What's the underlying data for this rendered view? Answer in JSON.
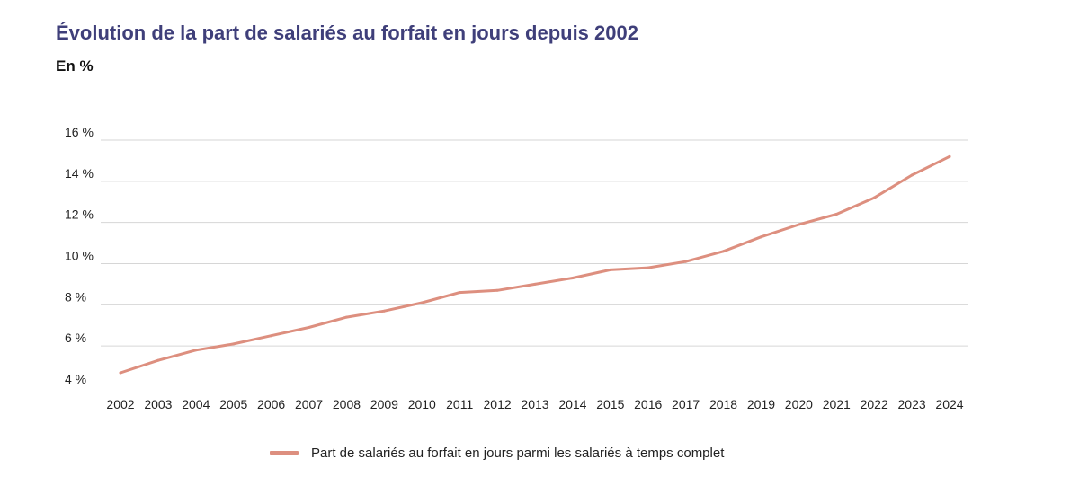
{
  "header": {
    "title": "Évolution de la part de salariés au forfait en jours depuis 2002",
    "subtitle": "En %"
  },
  "colors": {
    "line": "#dd8f7f",
    "grid": "#d6d6d6",
    "title": "#3f3f7a"
  },
  "chart_data": {
    "type": "line",
    "title": "Évolution de la part de salariés au forfait en jours depuis 2002",
    "unit_label": "En %",
    "x": [
      "2002",
      "2003",
      "2004",
      "2005",
      "2006",
      "2007",
      "2008",
      "2009",
      "2010",
      "2011",
      "2012",
      "2013",
      "2014",
      "2015",
      "2016",
      "2017",
      "2018",
      "2019",
      "2020",
      "2021",
      "2022",
      "2023",
      "2024"
    ],
    "series": [
      {
        "name": "Part de salariés au forfait en jours parmi les salariés à temps complet",
        "values": [
          4.7,
          5.3,
          5.8,
          6.1,
          6.5,
          6.9,
          7.4,
          7.7,
          8.1,
          8.6,
          8.7,
          9.0,
          9.3,
          9.7,
          9.8,
          10.1,
          10.6,
          11.3,
          11.9,
          12.4,
          13.2,
          14.3,
          15.2
        ]
      }
    ],
    "ylim": [
      4,
      16
    ],
    "yticks": [
      4,
      6,
      8,
      10,
      12,
      14,
      16
    ],
    "ytick_labels": [
      "4 %",
      "6 %",
      "8 %",
      "10 %",
      "12 %",
      "14 %",
      "16 %"
    ],
    "grid": true,
    "legend_position": "bottom-center"
  }
}
